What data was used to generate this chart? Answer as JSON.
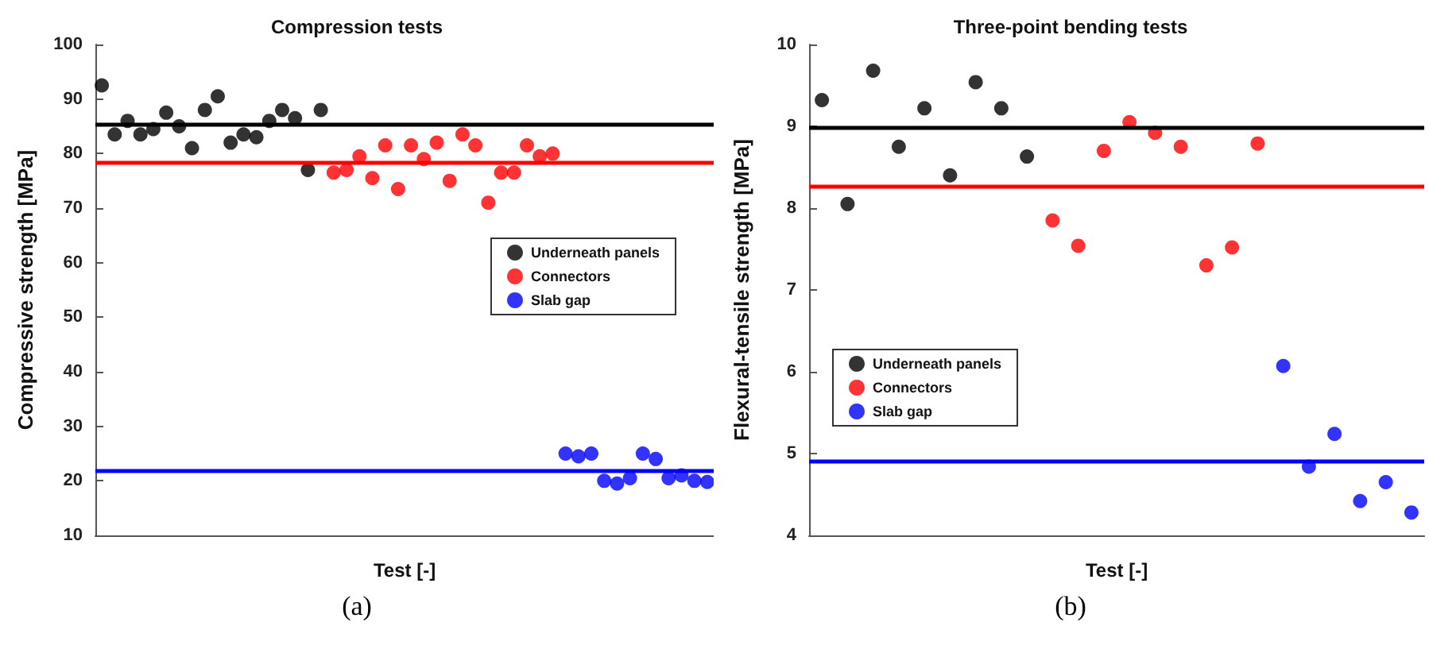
{
  "chart_data": [
    {
      "type": "scatter",
      "title": "Compression tests",
      "xlabel": "Test [-]",
      "ylabel": "Compressive strength [MPa]",
      "categories": [
        null,
        null,
        null,
        null,
        null,
        null,
        null,
        null,
        null,
        null,
        null,
        null,
        null,
        null,
        null,
        null,
        null,
        null,
        null,
        null,
        null,
        null,
        null,
        null,
        null,
        null,
        null,
        null,
        null,
        null,
        null,
        null,
        null,
        null,
        null,
        null,
        null,
        null,
        null,
        null,
        null,
        null,
        null,
        null,
        null,
        null,
        null,
        null
      ],
      "series": [
        {
          "name": "Underneath panels",
          "color": "#000000",
          "values": [
            92.5,
            83.5,
            86,
            83.5,
            84.5,
            87.5,
            85,
            81,
            88,
            90.5,
            82,
            83.5,
            83,
            86,
            88,
            86.5,
            77,
            88,
            null,
            null,
            null,
            null,
            null,
            null,
            null,
            null,
            null,
            null,
            null,
            null,
            null,
            null,
            null,
            null,
            null,
            null,
            null,
            null,
            null,
            null,
            null,
            null,
            null,
            null,
            null,
            null,
            null,
            null
          ]
        },
        {
          "name": "Connectors",
          "color": "#ff0000",
          "values": [
            null,
            null,
            null,
            null,
            null,
            null,
            null,
            null,
            null,
            null,
            null,
            null,
            null,
            null,
            null,
            null,
            null,
            null,
            76.5,
            77,
            79.5,
            75.5,
            81.5,
            73.5,
            81.5,
            79,
            82,
            75,
            83.5,
            81.5,
            71,
            76.5,
            76.5,
            81.5,
            79.5,
            80,
            null,
            null,
            null,
            null,
            null,
            null,
            null,
            null,
            null,
            null,
            null,
            null
          ]
        },
        {
          "name": "Slab gap",
          "color": "#0000ff",
          "values": [
            null,
            null,
            null,
            null,
            null,
            null,
            null,
            null,
            null,
            null,
            null,
            null,
            null,
            null,
            null,
            null,
            null,
            null,
            null,
            null,
            null,
            null,
            null,
            null,
            null,
            null,
            null,
            null,
            null,
            null,
            null,
            null,
            null,
            null,
            null,
            null,
            25,
            24.5,
            25,
            20,
            19.5,
            20.5,
            25,
            24,
            20.5,
            21,
            20,
            19.8
          ]
        }
      ],
      "ylim": [
        10,
        100
      ],
      "yticks": [
        10,
        20,
        30,
        40,
        50,
        60,
        70,
        80,
        90,
        100
      ],
      "ref_lines": [
        {
          "axis": "y",
          "value": 85.5,
          "color": "#000000"
        },
        {
          "axis": "y",
          "value": 78.5,
          "color": "#ff0000"
        },
        {
          "axis": "y",
          "value": 22,
          "color": "#0000ff"
        }
      ],
      "legend": "right",
      "marker": "circle",
      "tick_labels": "y",
      "grid": false,
      "annotations": [
        "(a)"
      ]
    },
    {
      "type": "scatter",
      "title": "Three-point bending tests",
      "xlabel": "Test [-]",
      "ylabel": "Flexural-tensile strength [MPa]",
      "categories": [
        null,
        null,
        null,
        null,
        null,
        null,
        null,
        null,
        null,
        null,
        null,
        null,
        null,
        null,
        null,
        null,
        null,
        null,
        null,
        null,
        null,
        null,
        null,
        null
      ],
      "series": [
        {
          "name": "Underneath panels",
          "color": "#000000",
          "values": [
            9.32,
            8.05,
            9.68,
            8.75,
            9.22,
            8.4,
            9.54,
            9.22,
            8.63,
            null,
            null,
            null,
            null,
            null,
            null,
            null,
            null,
            null,
            null,
            null,
            null,
            null,
            null,
            null
          ]
        },
        {
          "name": "Connectors",
          "color": "#ff0000",
          "values": [
            null,
            null,
            null,
            null,
            null,
            null,
            null,
            null,
            null,
            7.85,
            7.54,
            8.7,
            9.05,
            8.92,
            8.75,
            7.3,
            7.52,
            8.79,
            null,
            null,
            null,
            null,
            null,
            null
          ]
        },
        {
          "name": "Slab gap",
          "color": "#0000ff",
          "values": [
            null,
            null,
            null,
            null,
            null,
            null,
            null,
            null,
            null,
            null,
            null,
            null,
            null,
            null,
            null,
            null,
            null,
            null,
            6.07,
            4.84,
            5.24,
            4.42,
            4.65,
            4.28
          ]
        }
      ],
      "ylim": [
        4,
        10
      ],
      "yticks": [
        4,
        5,
        6,
        7,
        8,
        9,
        10
      ],
      "ref_lines": [
        {
          "axis": "y",
          "value": 8.98,
          "color": "#000000"
        },
        {
          "axis": "y",
          "value": 8.26,
          "color": "#ff0000"
        },
        {
          "axis": "y",
          "value": 4.91,
          "color": "#0000ff"
        }
      ],
      "legend": "left",
      "marker": "circle",
      "tick_labels": "y",
      "grid": false,
      "annotations": [
        "(b)"
      ]
    }
  ]
}
